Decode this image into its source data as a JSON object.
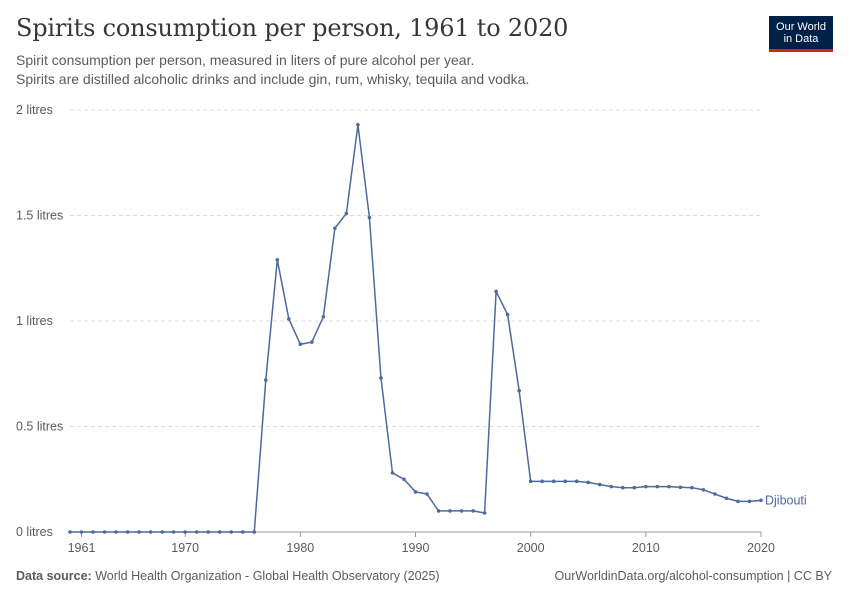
{
  "header": {
    "title": "Spirits consumption per person, 1961 to 2020",
    "subtitle_line1": "Spirit consumption per person, measured in liters of pure alcohol per year.",
    "subtitle_line2": "Spirits are distilled alcoholic drinks and include gin, rum, whisky, tequila and vodka.",
    "logo_line1": "Our World",
    "logo_line2": "in Data"
  },
  "footer": {
    "source_label": "Data source:",
    "source_text": "World Health Organization - Global Health Observatory (2025)",
    "credit": "OurWorldinData.org/alcohol-consumption | CC BY"
  },
  "colors": {
    "series": "#4c6a9c",
    "grid": "#dddddd",
    "axis": "#999999",
    "text": "#5b5b5b",
    "logo_bg": "#002147",
    "logo_accent": "#ce261e"
  },
  "chart_data": {
    "type": "line",
    "title": "Spirits consumption per person, 1961 to 2020",
    "xlabel": "",
    "ylabel": "",
    "xlim": [
      1960,
      2020
    ],
    "ylim": [
      0,
      2
    ],
    "x_ticks": [
      1961,
      1970,
      1980,
      1990,
      2000,
      2010,
      2020
    ],
    "y_ticks": [
      {
        "value": 0,
        "label": "0 litres"
      },
      {
        "value": 0.5,
        "label": "0.5 litres"
      },
      {
        "value": 1,
        "label": "1 litres"
      },
      {
        "value": 1.5,
        "label": "1.5 litres"
      },
      {
        "value": 2,
        "label": "2 litres"
      }
    ],
    "grid": true,
    "legend": "end-of-line label",
    "series": [
      {
        "name": "Djibouti",
        "x": [
          1960,
          1961,
          1962,
          1963,
          1964,
          1965,
          1966,
          1967,
          1968,
          1969,
          1970,
          1971,
          1972,
          1973,
          1974,
          1975,
          1976,
          1977,
          1978,
          1979,
          1980,
          1981,
          1982,
          1983,
          1984,
          1985,
          1986,
          1987,
          1988,
          1989,
          1990,
          1991,
          1992,
          1993,
          1994,
          1995,
          1996,
          1997,
          1998,
          1999,
          2000,
          2001,
          2002,
          2003,
          2004,
          2005,
          2006,
          2007,
          2008,
          2009,
          2010,
          2011,
          2012,
          2013,
          2014,
          2015,
          2016,
          2017,
          2018,
          2019,
          2020
        ],
        "values": [
          0,
          0,
          0,
          0,
          0,
          0,
          0,
          0,
          0,
          0,
          0,
          0,
          0,
          0,
          0,
          0,
          0,
          0.72,
          1.29,
          1.01,
          0.89,
          0.9,
          1.02,
          1.44,
          1.51,
          1.93,
          1.49,
          0.73,
          0.28,
          0.25,
          0.19,
          0.18,
          0.1,
          0.1,
          0.1,
          0.1,
          0.09,
          1.14,
          1.03,
          0.67,
          0.24,
          0.24,
          0.24,
          0.24,
          0.24,
          0.235,
          0.225,
          0.215,
          0.21,
          0.21,
          0.215,
          0.215,
          0.215,
          0.212,
          0.21,
          0.2,
          0.18,
          0.16,
          0.145,
          0.145,
          0.15
        ]
      }
    ]
  }
}
